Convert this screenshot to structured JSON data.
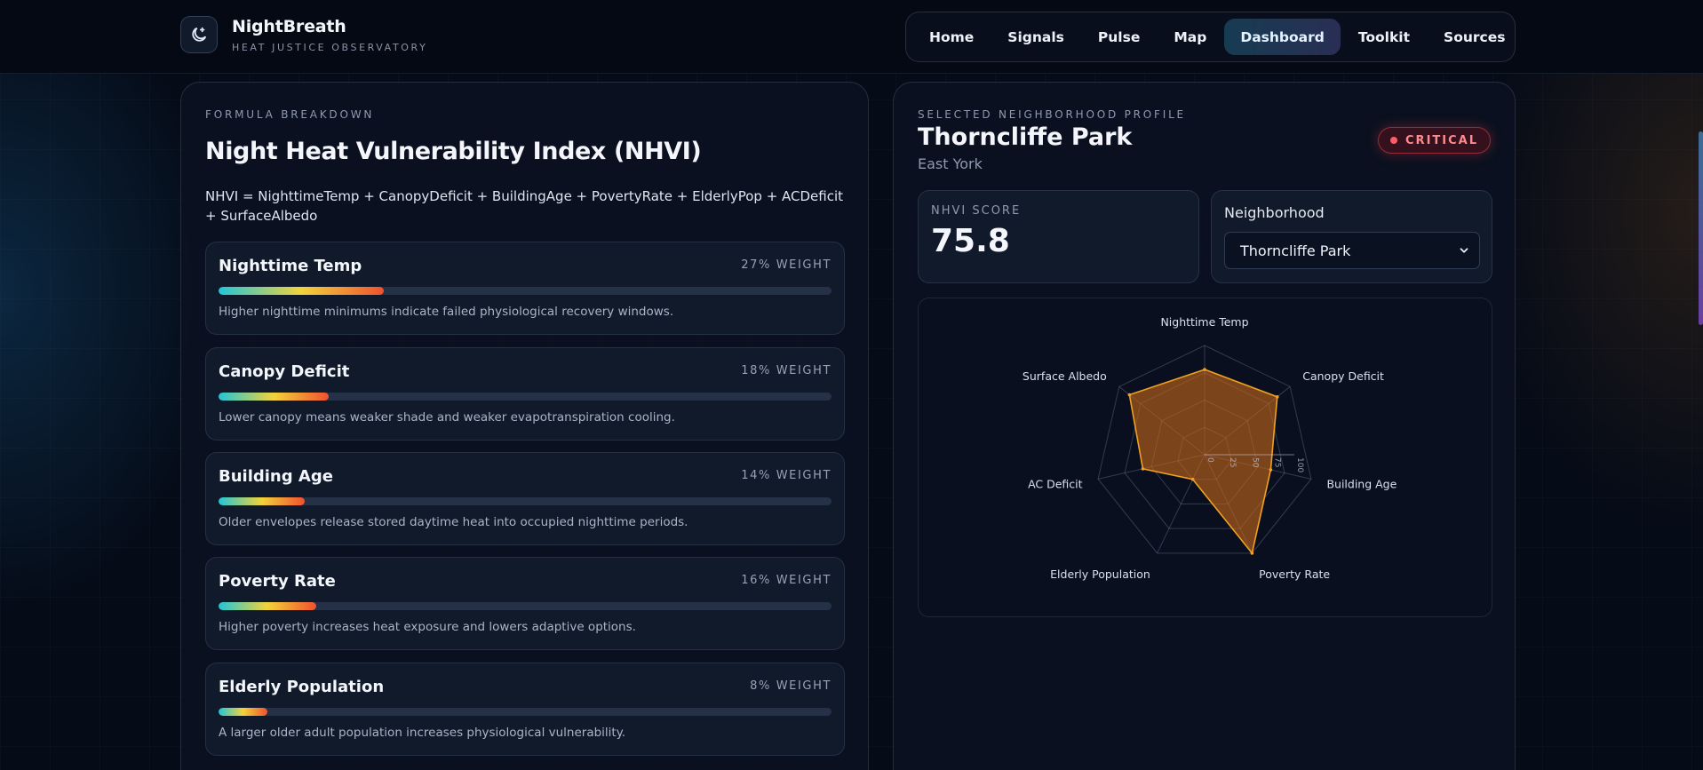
{
  "header": {
    "brand_name": "NightBreath",
    "brand_sub": "HEAT JUSTICE OBSERVATORY",
    "nav": [
      "Home",
      "Signals",
      "Pulse",
      "Map",
      "Dashboard",
      "Toolkit",
      "Sources"
    ],
    "active_nav": "Dashboard"
  },
  "formula": {
    "eyebrow": "FORMULA BREAKDOWN",
    "title": "Night Heat Vulnerability Index (NHVI)",
    "text": "NHVI = NighttimeTemp + CanopyDeficit + BuildingAge + PovertyRate + ElderlyPop + ACDeficit + SurfaceAlbedo",
    "factors": [
      {
        "name": "Nighttime Temp",
        "weight": "27% WEIGHT",
        "level": 0.27,
        "desc": "Higher nighttime minimums indicate failed physiological recovery windows."
      },
      {
        "name": "Canopy Deficit",
        "weight": "18% WEIGHT",
        "level": 0.18,
        "desc": "Lower canopy means weaker shade and weaker evapotranspiration cooling."
      },
      {
        "name": "Building Age",
        "weight": "14% WEIGHT",
        "level": 0.14,
        "desc": "Older envelopes release stored daytime heat into occupied nighttime periods."
      },
      {
        "name": "Poverty Rate",
        "weight": "16% WEIGHT",
        "level": 0.16,
        "desc": "Higher poverty increases heat exposure and lowers adaptive options."
      },
      {
        "name": "Elderly Population",
        "weight": "8% WEIGHT",
        "level": 0.08,
        "desc": "A larger older adult population increases physiological vulnerability."
      }
    ]
  },
  "profile": {
    "eyebrow": "SELECTED NEIGHBORHOOD PROFILE",
    "name": "Thorncliffe Park",
    "district": "East York",
    "badge": "CRITICAL",
    "score_label": "NHVI SCORE",
    "score": "75.8",
    "select_label": "Neighborhood",
    "selected": "Thorncliffe Park"
  },
  "chart_data": {
    "type": "radar",
    "axes": [
      "Nighttime Temp",
      "Canopy Deficit",
      "Building Age",
      "Poverty Rate",
      "Elderly Population",
      "AC Deficit",
      "Surface Albedo"
    ],
    "values": [
      78,
      85,
      62,
      100,
      25,
      58,
      88
    ],
    "range": [
      0,
      100
    ],
    "ticks": [
      "0",
      "25",
      "50",
      "75",
      "100"
    ],
    "fill_color": "#c4661a",
    "stroke_color": "#f0a020"
  },
  "colors": {
    "accent_teal": "#22c5d8",
    "accent_yellow": "#f2d33b",
    "accent_red": "#f0512f",
    "critical": "#ff5c66"
  }
}
